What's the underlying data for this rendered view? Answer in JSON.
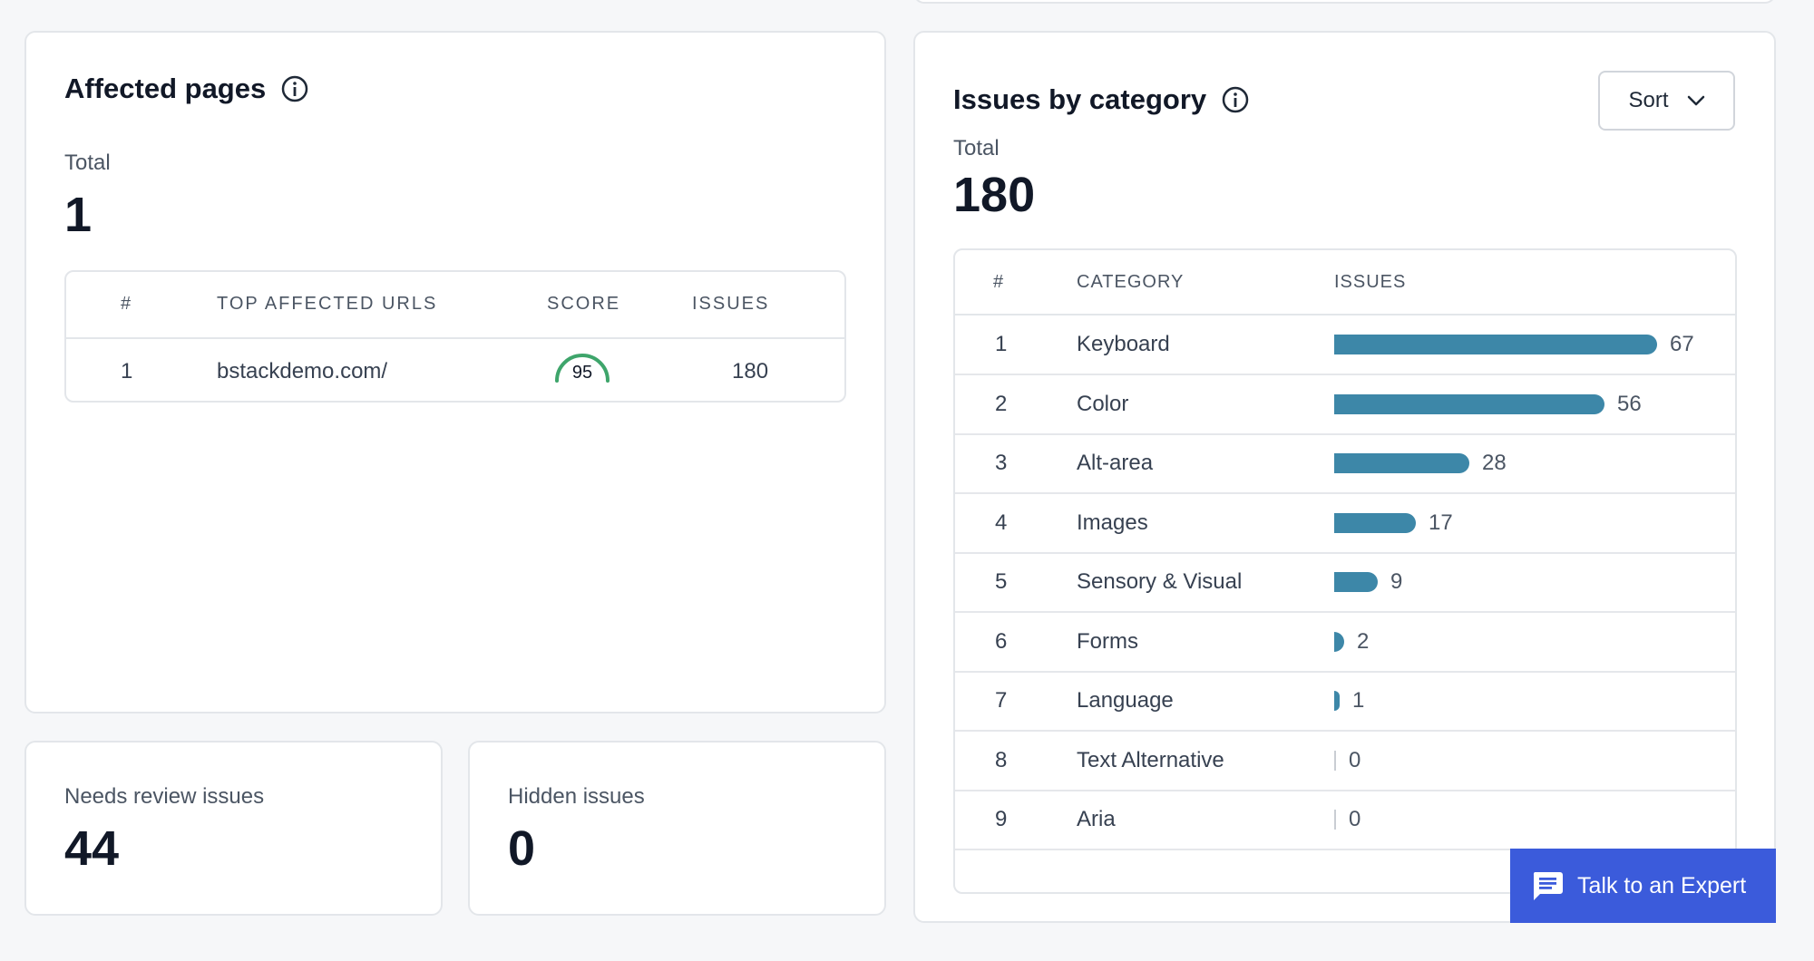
{
  "affected": {
    "title": "Affected pages",
    "total_label": "Total",
    "total_value": "1",
    "table": {
      "headers": [
        "#",
        "TOP AFFECTED URLS",
        "SCORE",
        "ISSUES"
      ],
      "rows": [
        {
          "num": "1",
          "url": "bstackdemo.com/",
          "score": "95",
          "score_fraction": 0.95,
          "issues": "180"
        }
      ]
    }
  },
  "review": {
    "label": "Needs review issues",
    "value": "44"
  },
  "hidden": {
    "label": "Hidden issues",
    "value": "0"
  },
  "issues": {
    "title": "Issues by category",
    "sort_label": "Sort",
    "total_label": "Total",
    "total_value": "180",
    "headers": [
      "#",
      "CATEGORY",
      "ISSUES"
    ],
    "rows": [
      {
        "num": "1",
        "category": "Keyboard",
        "count": 67
      },
      {
        "num": "2",
        "category": "Color",
        "count": 56
      },
      {
        "num": "3",
        "category": "Alt-area",
        "count": 28
      },
      {
        "num": "4",
        "category": "Images",
        "count": 17
      },
      {
        "num": "5",
        "category": "Sensory & Visual",
        "count": 9
      },
      {
        "num": "6",
        "category": "Forms",
        "count": 2
      },
      {
        "num": "7",
        "category": "Language",
        "count": 1
      },
      {
        "num": "8",
        "category": "Text Alternative",
        "count": 0
      },
      {
        "num": "9",
        "category": "Aria",
        "count": 0
      }
    ]
  },
  "expert_button": {
    "label": "Talk to an Expert"
  },
  "colors": {
    "bar": "#3d87a8",
    "score_ring": "#3ea56b",
    "expert": "#3b5bdb"
  }
}
